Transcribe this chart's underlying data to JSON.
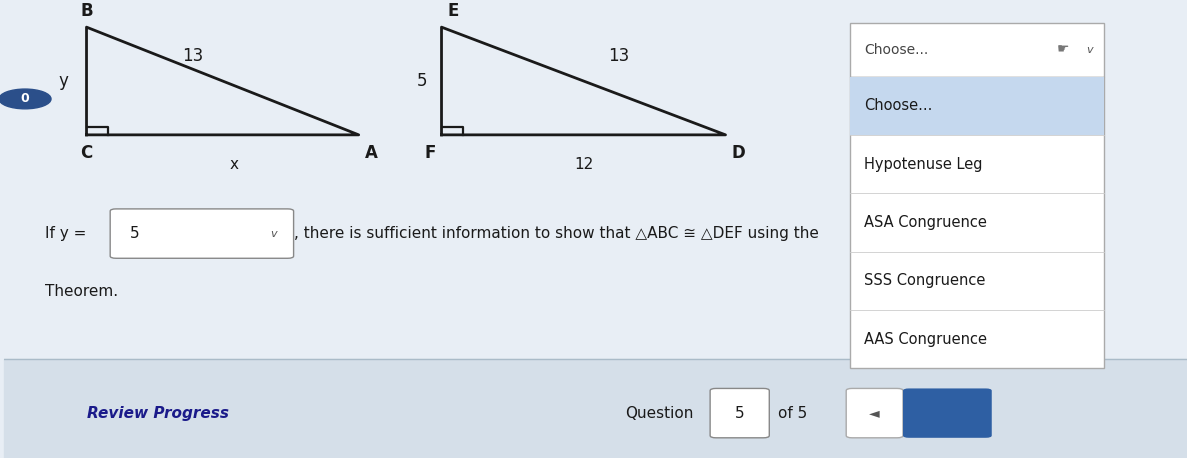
{
  "bg_color": "#e8eef5",
  "bg_color_lower": "#d5dfe9",
  "white": "#ffffff",
  "black": "#1a1a1a",
  "dark_gray": "#444444",
  "blue_btn": "#2e5fa3",
  "dropdown_header_bg": "#ffffff",
  "dropdown_choose_bg": "#c5d8ee",
  "dropdown_body_bg": "#ffffff",
  "triangle1": {
    "C": [
      0.07,
      0.72
    ],
    "B": [
      0.07,
      0.96
    ],
    "A": [
      0.3,
      0.72
    ],
    "label_B": "B",
    "label_C": "C",
    "label_A": "A",
    "label_y": "y",
    "label_x": "x",
    "hyp_label": "13"
  },
  "triangle2": {
    "F": [
      0.37,
      0.72
    ],
    "E": [
      0.37,
      0.96
    ],
    "D": [
      0.61,
      0.72
    ],
    "label_E": "E",
    "label_F": "F",
    "label_D": "D",
    "leg_label": "5",
    "base_label": "12",
    "hyp_label": "13"
  },
  "y_value": "5",
  "main_text": ", there is sufficient information to show that △ABC ≅ △DEF using the",
  "theorem_text": "Theorem.",
  "dropdown_header": "Choose...",
  "dropdown_options": [
    "Choose...",
    "Hypotenuse Leg",
    "ASA Congruence",
    "SSS Congruence",
    "AAS Congruence"
  ],
  "review_text": "Review Progress",
  "question_label": "Question",
  "question_num": "5",
  "question_of": "of 5",
  "circle_num": "0",
  "circle_color": "#2b4f8a"
}
